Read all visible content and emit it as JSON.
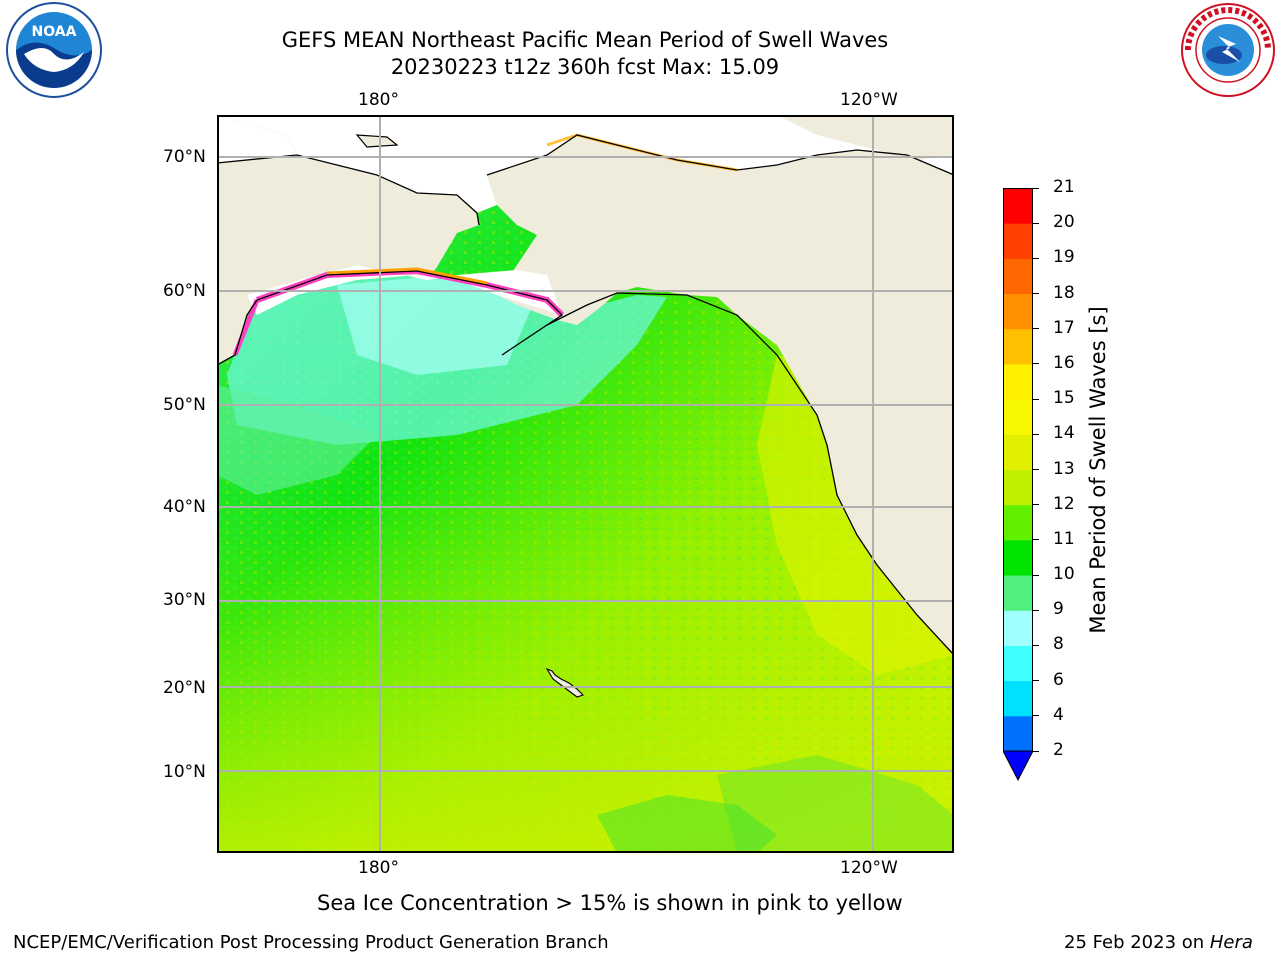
{
  "header": {
    "title_line1": "GEFS MEAN Northeast Pacific Mean Period of Swell Waves",
    "title_line2": "20230223 t12z 360h fcst   Max: 15.09"
  },
  "logos": {
    "left": {
      "icon": "noaa-logo",
      "text": "NOAA"
    },
    "right": {
      "icon": "nws-logo",
      "text": "NATIONAL WEATHER SERVICE"
    }
  },
  "map": {
    "lon_labels_top": [
      "180°",
      "120°W"
    ],
    "lon_labels_bottom": [
      "180°",
      "120°W"
    ],
    "lat_labels": [
      "70°N",
      "60°N",
      "50°N",
      "40°N",
      "30°N",
      "20°N",
      "10°N"
    ],
    "colors": {
      "land": "#efecdc",
      "grid": "#b0b0b0",
      "coast": "#000000"
    }
  },
  "colorbar": {
    "label": "Mean Period of Swell Waves [s]",
    "ticks": [
      "2",
      "4",
      "6",
      "8",
      "9",
      "10",
      "11",
      "12",
      "13",
      "14",
      "15",
      "16",
      "17",
      "18",
      "19",
      "20",
      "21"
    ],
    "extend_color": "#0000ff",
    "colors": [
      "#0070ff",
      "#00e0ff",
      "#40ffff",
      "#a0ffff",
      "#50f080",
      "#00e400",
      "#60f000",
      "#c0f000",
      "#e0f000",
      "#f8f800",
      "#fff000",
      "#ffc000",
      "#ff9000",
      "#ff6800",
      "#ff4000",
      "#ff0000"
    ]
  },
  "note": "Sea Ice Concentration > 15% is shown in pink to yellow",
  "footer": {
    "left": "NCEP/EMC/Verification Post Processing Product Generation Branch",
    "right_date": "25 Feb 2023 on ",
    "right_host": "Hera"
  }
}
